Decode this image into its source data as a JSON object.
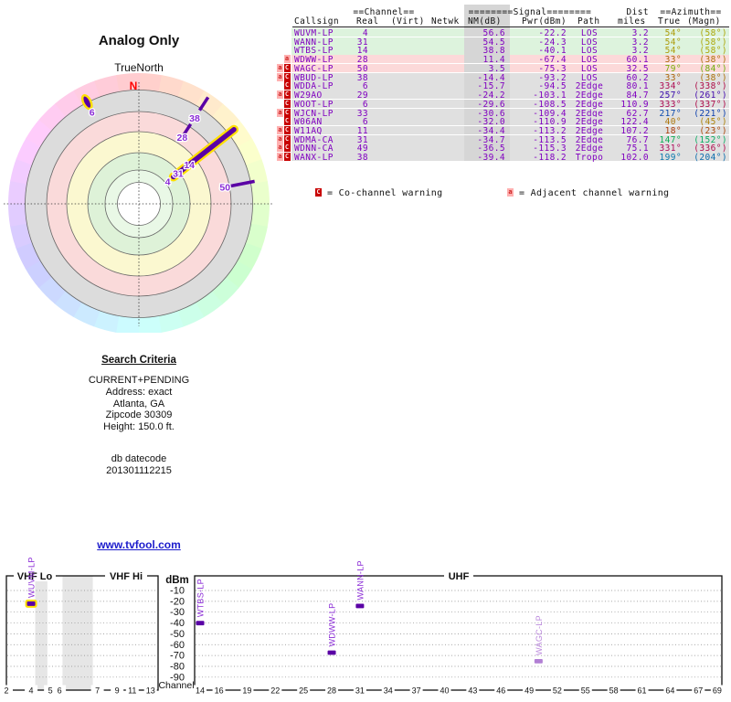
{
  "page": {
    "title": "Analog Only",
    "link_text": "www.tvfool.com"
  },
  "colors": {
    "purple": "#8000c0",
    "marker_purple": "#5a00a5",
    "marker_light": "#b27fd4",
    "label_purple": "#8a2bd6",
    "highlight_yellow": "#ffe000",
    "row_green": "#ddf3dd",
    "row_pink": "#fcd9d9",
    "row_gray": "#e0e0e0",
    "nm_band": "#d6d6d6",
    "link_blue": "#1c1ccc",
    "north_red": "#ff0000",
    "ring_gray": "#dcdcdc",
    "ring_pink": "#fadada",
    "ring_yellow": "#fbf8d0",
    "ring_green": "#def2d8",
    "ring_green2": "#e9f8e6"
  },
  "table": {
    "group_headers": {
      "channel": "==Channel==",
      "signal": "========Signal========",
      "dist": "Dist",
      "azimuth": "==Azimuth=="
    },
    "columns": [
      "Callsign",
      "Real",
      "(Virt)",
      "Netwk",
      "NM(dB)",
      "Pwr(dBm)",
      "Path",
      "miles",
      "True",
      "(Magn)"
    ],
    "rows": [
      {
        "callsign": "WUVM-LP",
        "real": "4",
        "nm": "56.6",
        "pwr": "-22.2",
        "path": "LOS",
        "miles": "3.2",
        "az_true": 54,
        "az_magn": 58,
        "warn": "",
        "status": "green"
      },
      {
        "callsign": "WANN-LP",
        "real": "31",
        "nm": "54.5",
        "pwr": "-24.3",
        "path": "LOS",
        "miles": "3.2",
        "az_true": 54,
        "az_magn": 58,
        "warn": "",
        "status": "green"
      },
      {
        "callsign": "WTBS-LP",
        "real": "14",
        "nm": "38.8",
        "pwr": "-40.1",
        "path": "LOS",
        "miles": "3.2",
        "az_true": 54,
        "az_magn": 58,
        "warn": "",
        "status": "green"
      },
      {
        "callsign": "WDWW-LP",
        "real": "28",
        "nm": "11.4",
        "pwr": "-67.4",
        "path": "LOS",
        "miles": "60.1",
        "az_true": 33,
        "az_magn": 38,
        "warn": "a",
        "status": "pink"
      },
      {
        "callsign": "WAGC-LP",
        "real": "50",
        "nm": "3.5",
        "pwr": "-75.3",
        "path": "LOS",
        "miles": "32.5",
        "az_true": 79,
        "az_magn": 84,
        "warn": "aC",
        "status": "pink"
      },
      {
        "callsign": "WBUD-LP",
        "real": "38",
        "nm": "-14.4",
        "pwr": "-93.2",
        "path": "LOS",
        "miles": "60.2",
        "az_true": 33,
        "az_magn": 38,
        "warn": "aC",
        "status": "gray"
      },
      {
        "callsign": "WDDA-LP",
        "real": "6",
        "nm": "-15.7",
        "pwr": "-94.5",
        "path": "2Edge",
        "miles": "80.1",
        "az_true": 334,
        "az_magn": 338,
        "warn": "C",
        "status": "gray"
      },
      {
        "callsign": "W29AO",
        "real": "29",
        "nm": "-24.2",
        "pwr": "-103.1",
        "path": "2Edge",
        "miles": "84.7",
        "az_true": 257,
        "az_magn": 261,
        "warn": "aC",
        "status": "gray"
      },
      {
        "callsign": "WOOT-LP",
        "real": "6",
        "nm": "-29.6",
        "pwr": "-108.5",
        "path": "2Edge",
        "miles": "110.9",
        "az_true": 333,
        "az_magn": 337,
        "warn": "C",
        "status": "gray"
      },
      {
        "callsign": "WJCN-LP",
        "real": "33",
        "nm": "-30.6",
        "pwr": "-109.4",
        "path": "2Edge",
        "miles": "62.7",
        "az_true": 217,
        "az_magn": 221,
        "warn": "aC",
        "status": "gray"
      },
      {
        "callsign": "W06AN",
        "real": "6",
        "nm": "-32.0",
        "pwr": "-110.9",
        "path": "2Edge",
        "miles": "122.4",
        "az_true": 40,
        "az_magn": 45,
        "warn": "C",
        "status": "gray"
      },
      {
        "callsign": "W11AQ",
        "real": "11",
        "nm": "-34.4",
        "pwr": "-113.2",
        "path": "2Edge",
        "miles": "107.2",
        "az_true": 18,
        "az_magn": 23,
        "warn": "aC",
        "status": "gray"
      },
      {
        "callsign": "WDMA-CA",
        "real": "31",
        "nm": "-34.7",
        "pwr": "-113.5",
        "path": "2Edge",
        "miles": "76.7",
        "az_true": 147,
        "az_magn": 152,
        "warn": "aC",
        "status": "gray"
      },
      {
        "callsign": "WDNN-CA",
        "real": "49",
        "nm": "-36.5",
        "pwr": "-115.3",
        "path": "2Edge",
        "miles": "75.1",
        "az_true": 331,
        "az_magn": 336,
        "warn": "aC",
        "status": "gray"
      },
      {
        "callsign": "WANX-LP",
        "real": "38",
        "nm": "-39.4",
        "pwr": "-118.2",
        "path": "Tropo",
        "miles": "102.0",
        "az_true": 199,
        "az_magn": 204,
        "warn": "aC",
        "status": "gray"
      }
    ],
    "legend": {
      "co_badge": "C",
      "co_text": "= Co-channel warning",
      "adj_badge": "a",
      "adj_text": "= Adjacent channel warning"
    }
  },
  "search_criteria": {
    "heading": "Search Criteria",
    "lines": [
      "CURRENT+PENDING",
      "Address: exact",
      "Atlanta, GA",
      "Zipcode 30309",
      "Height: 150.0 ft."
    ],
    "footer_lines": [
      "db datecode",
      "201301112215"
    ]
  },
  "chart_data": [
    {
      "type": "polar",
      "title": "Analog Only",
      "north_label": "TrueNorth",
      "north_letter": "N",
      "rings_inner_to_outer": [
        "white",
        "pale-green",
        "pale-green",
        "pale-yellow",
        "pale-pink",
        "gray",
        "azimuth-hue-wheel"
      ],
      "ring_radii": [
        23.5,
        37,
        56,
        79,
        101,
        124.5,
        143
      ],
      "markers": [
        {
          "channels": "4+31+14",
          "azimuth_true": 52,
          "r0": 48,
          "r1": 132,
          "style": "thick",
          "highlight": true,
          "labels": [
            {
              "text": "14",
              "r": 70
            },
            {
              "text": "31",
              "r": 54.5
            },
            {
              "text": "4",
              "r": 40
            }
          ]
        },
        {
          "channels": "28",
          "azimuth_true": 33,
          "r0": 90,
          "r1": 104,
          "style": "line",
          "labels": [
            {
              "text": "28",
              "r": 87
            }
          ]
        },
        {
          "channels": "38",
          "azimuth_true": 33,
          "r0": 122,
          "r1": 139,
          "style": "line",
          "labels": [
            {
              "text": "38",
              "r": 112
            }
          ]
        },
        {
          "channels": "50",
          "azimuth_true": 79,
          "r0": 100,
          "r1": 129,
          "style": "line",
          "labels": [
            {
              "text": "50",
              "r": 96
            }
          ]
        },
        {
          "channels": "6",
          "azimuth_true": 333,
          "r0": 125,
          "r1": 125,
          "style": "ellipse",
          "highlight": true,
          "labels": [
            {
              "text": "6",
              "r": 113
            }
          ]
        }
      ]
    },
    {
      "type": "spectrum",
      "ylabel": "dBm",
      "xlabel": "Channel",
      "yticks": [
        -10,
        -20,
        -30,
        -40,
        -50,
        -60,
        -70,
        -80,
        -90
      ],
      "panels": [
        {
          "id": "vhf",
          "band_labels": [
            "VHF Lo",
            "VHF Hi"
          ],
          "ticks": [
            {
              "ch": "2",
              "f": 0.0
            },
            {
              "ch": "4",
              "f": 0.163
            },
            {
              "ch": "5",
              "f": 0.29
            },
            {
              "ch": "6",
              "f": 0.35
            },
            {
              "ch": "7",
              "f": 0.6
            },
            {
              "ch": "9",
              "f": 0.73
            },
            {
              "ch": "11",
              "f": 0.83
            },
            {
              "ch": "13",
              "f": 0.95
            }
          ],
          "gaps": [
            [
              0.19,
              0.27
            ],
            [
              0.37,
              0.57
            ]
          ]
        },
        {
          "id": "uhf",
          "band_labels": [
            "UHF"
          ],
          "ch_range": [
            14,
            69
          ],
          "ticks": [
            "14",
            "16",
            "19",
            "22",
            "25",
            "28",
            "31",
            "34",
            "37",
            "40",
            "43",
            "46",
            "49",
            "52",
            "55",
            "58",
            "61",
            "64",
            "67",
            "69"
          ]
        }
      ],
      "markers": [
        {
          "callsign": "WUVM-LP",
          "channel": 4,
          "dbm": -22.2,
          "panel": "vhf",
          "highlight": true
        },
        {
          "callsign": "WTBS-LP",
          "channel": 14,
          "dbm": -40.1,
          "panel": "uhf"
        },
        {
          "callsign": "WDWW-LP",
          "channel": 28,
          "dbm": -67.4,
          "panel": "uhf"
        },
        {
          "callsign": "WANN-LP",
          "channel": 31,
          "dbm": -24.3,
          "panel": "uhf"
        },
        {
          "callsign": "WAGC-LP",
          "channel": 50,
          "dbm": -75.3,
          "panel": "uhf",
          "light": true
        }
      ]
    }
  ]
}
